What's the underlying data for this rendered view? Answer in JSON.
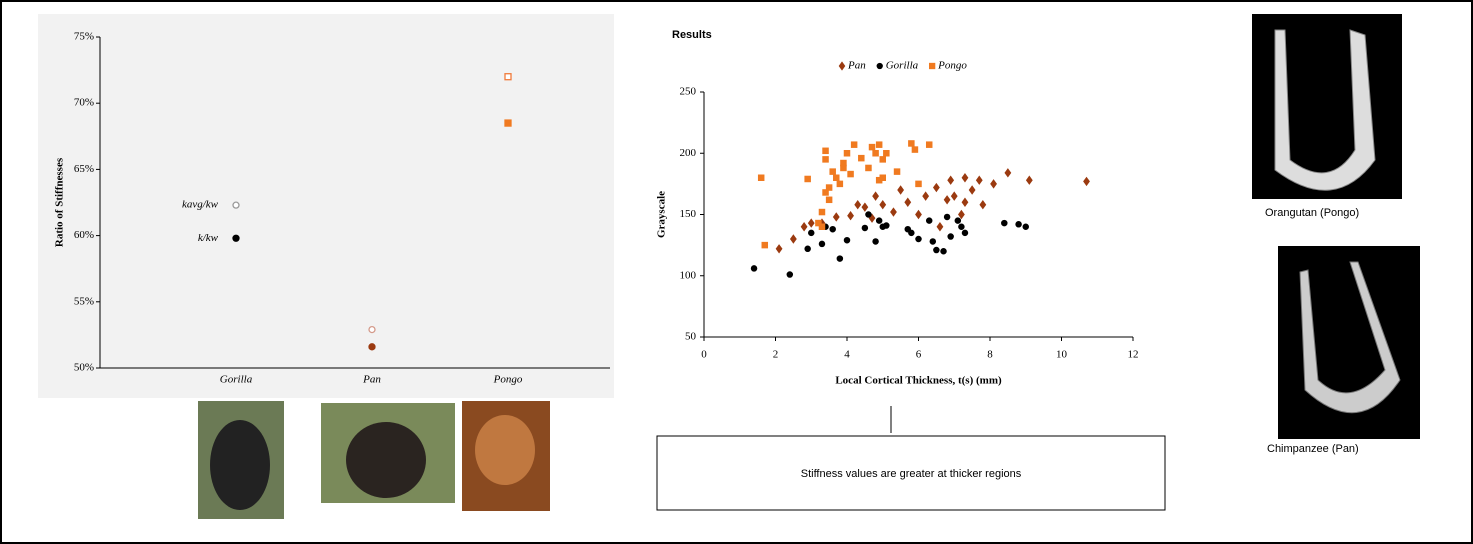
{
  "title": "Results",
  "callout": "Stiffness values are greater at thicker regions",
  "captions": [
    "Orangutan (Pongo)",
    "Chimpanzee (Pan)"
  ],
  "chart_data": [
    {
      "type": "category-scatter",
      "y_label": "Ratio of Stiffnesses",
      "categories": [
        "Gorilla",
        "Pan",
        "Pongo"
      ],
      "markers": [
        "circle",
        "circle",
        "square"
      ],
      "series": [
        {
          "name": "kavg/kw",
          "filled": false,
          "colors": [
            "#999999",
            "#d49a8a",
            "#f07a3a"
          ],
          "values": [
            62.3,
            52.9,
            72.0
          ]
        },
        {
          "name": "k/kw",
          "filled": true,
          "colors": [
            "#000000",
            "#9b3a10",
            "#f07a20"
          ],
          "values": [
            59.8,
            51.6,
            68.5
          ]
        }
      ],
      "ylim": [
        50,
        75
      ],
      "yticks": [
        {
          "value": 50,
          "label": "50%"
        },
        {
          "value": 55,
          "label": "55%"
        },
        {
          "value": 60,
          "label": "60%"
        },
        {
          "value": 65,
          "label": "65%"
        },
        {
          "value": 70,
          "label": "70%"
        },
        {
          "value": 75,
          "label": "75%"
        }
      ]
    },
    {
      "type": "scatter",
      "x_label": "Local Cortical Thickness, t(s) (mm)",
      "y_label": "Grayscale",
      "xlim": [
        0,
        12
      ],
      "xticks": [
        0,
        2,
        4,
        6,
        8,
        10,
        12
      ],
      "ylim": [
        50,
        250
      ],
      "yticks": [
        50,
        100,
        150,
        200,
        250
      ],
      "series": [
        {
          "name": "Pan",
          "marker": "diamond",
          "color": "#9b3a10",
          "x": [
            2.1,
            2.5,
            2.8,
            3.0,
            3.3,
            3.7,
            4.1,
            4.3,
            4.5,
            4.7,
            4.8,
            5.0,
            5.3,
            5.5,
            5.7,
            6.0,
            6.2,
            6.5,
            6.8,
            6.9,
            7.0,
            7.2,
            7.3,
            7.5,
            7.7,
            7.8,
            8.1,
            8.5,
            9.1,
            10.7,
            6.6,
            7.3
          ],
          "values": [
            122,
            130,
            140,
            143,
            143,
            148,
            149,
            158,
            156,
            147,
            165,
            158,
            152,
            170,
            160,
            150,
            165,
            172,
            162,
            178,
            165,
            150,
            180,
            170,
            178,
            158,
            175,
            184,
            178,
            177,
            140,
            160
          ]
        },
        {
          "name": "Gorilla",
          "marker": "circle",
          "color": "#000000",
          "x": [
            1.4,
            2.4,
            2.9,
            3.0,
            3.3,
            3.4,
            3.6,
            3.8,
            4.0,
            4.5,
            4.8,
            4.9,
            5.0,
            5.1,
            5.7,
            5.8,
            6.0,
            6.3,
            6.4,
            6.5,
            6.7,
            6.8,
            6.9,
            7.1,
            7.2,
            7.3,
            8.4,
            8.8,
            9.0,
            4.6
          ],
          "values": [
            106,
            101,
            122,
            135,
            126,
            140,
            138,
            114,
            129,
            139,
            128,
            145,
            140,
            141,
            138,
            135,
            130,
            145,
            128,
            121,
            120,
            148,
            132,
            145,
            140,
            135,
            143,
            142,
            140,
            150
          ]
        },
        {
          "name": "Pongo",
          "marker": "square",
          "color": "#f07a20",
          "x": [
            1.6,
            1.7,
            2.9,
            3.2,
            3.3,
            3.4,
            3.4,
            3.4,
            3.5,
            3.5,
            3.6,
            3.7,
            3.8,
            3.9,
            3.9,
            4.0,
            4.1,
            4.2,
            4.4,
            4.6,
            4.7,
            4.8,
            4.9,
            5.0,
            5.0,
            5.1,
            5.4,
            5.8,
            5.9,
            6.0,
            6.3,
            3.3,
            4.9
          ],
          "values": [
            180,
            125,
            179,
            143,
            152,
            195,
            202,
            168,
            172,
            162,
            185,
            180,
            175,
            188,
            192,
            200,
            183,
            207,
            196,
            188,
            205,
            200,
            207,
            195,
            180,
            200,
            185,
            208,
            203,
            175,
            207,
            140,
            178
          ]
        }
      ]
    }
  ]
}
